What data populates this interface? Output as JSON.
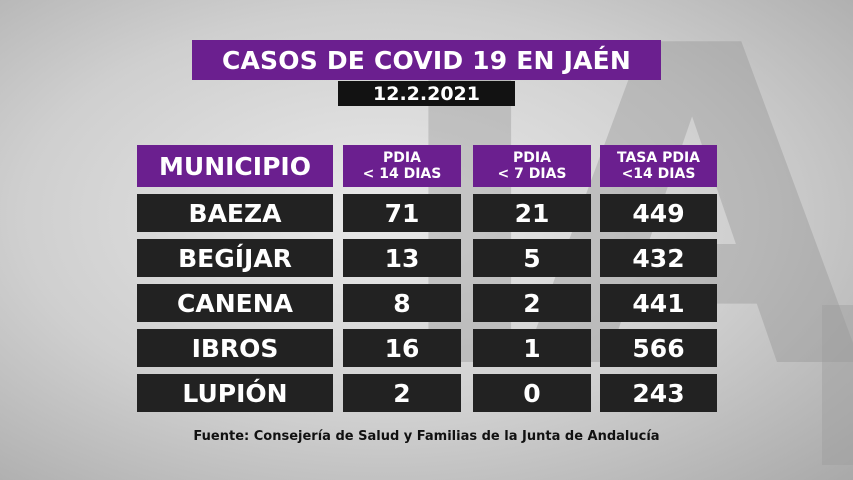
{
  "title": "CASOS DE COVID 19 EN JAÉN",
  "date": "12.2.2021",
  "headers": {
    "municipio": "MUNICIPIO",
    "pdia14_line1": "PDIA",
    "pdia14_line2": "< 14 DIAS",
    "pdia7_line1": "PDIA",
    "pdia7_line2": "< 7 DIAS",
    "tasa_line1": "TASA PDIA",
    "tasa_line2": "<14 DIAS"
  },
  "rows": [
    {
      "municipio": "BAEZA",
      "pdia14": "71",
      "pdia7": "21",
      "tasa": "449"
    },
    {
      "municipio": "BEGÍJAR",
      "pdia14": "13",
      "pdia7": "5",
      "tasa": "432"
    },
    {
      "municipio": "CANENA",
      "pdia14": "8",
      "pdia7": "2",
      "tasa": "441"
    },
    {
      "municipio": "IBROS",
      "pdia14": "16",
      "pdia7": "1",
      "tasa": "566"
    },
    {
      "municipio": "LUPIÓN",
      "pdia14": "2",
      "pdia7": "0",
      "tasa": "243"
    }
  ],
  "source": "Fuente: Consejería de Salud y Familias de la Junta de Andalucía",
  "colors": {
    "header": "#6b1f8f",
    "row": "#222222",
    "date_bg": "#121212"
  }
}
